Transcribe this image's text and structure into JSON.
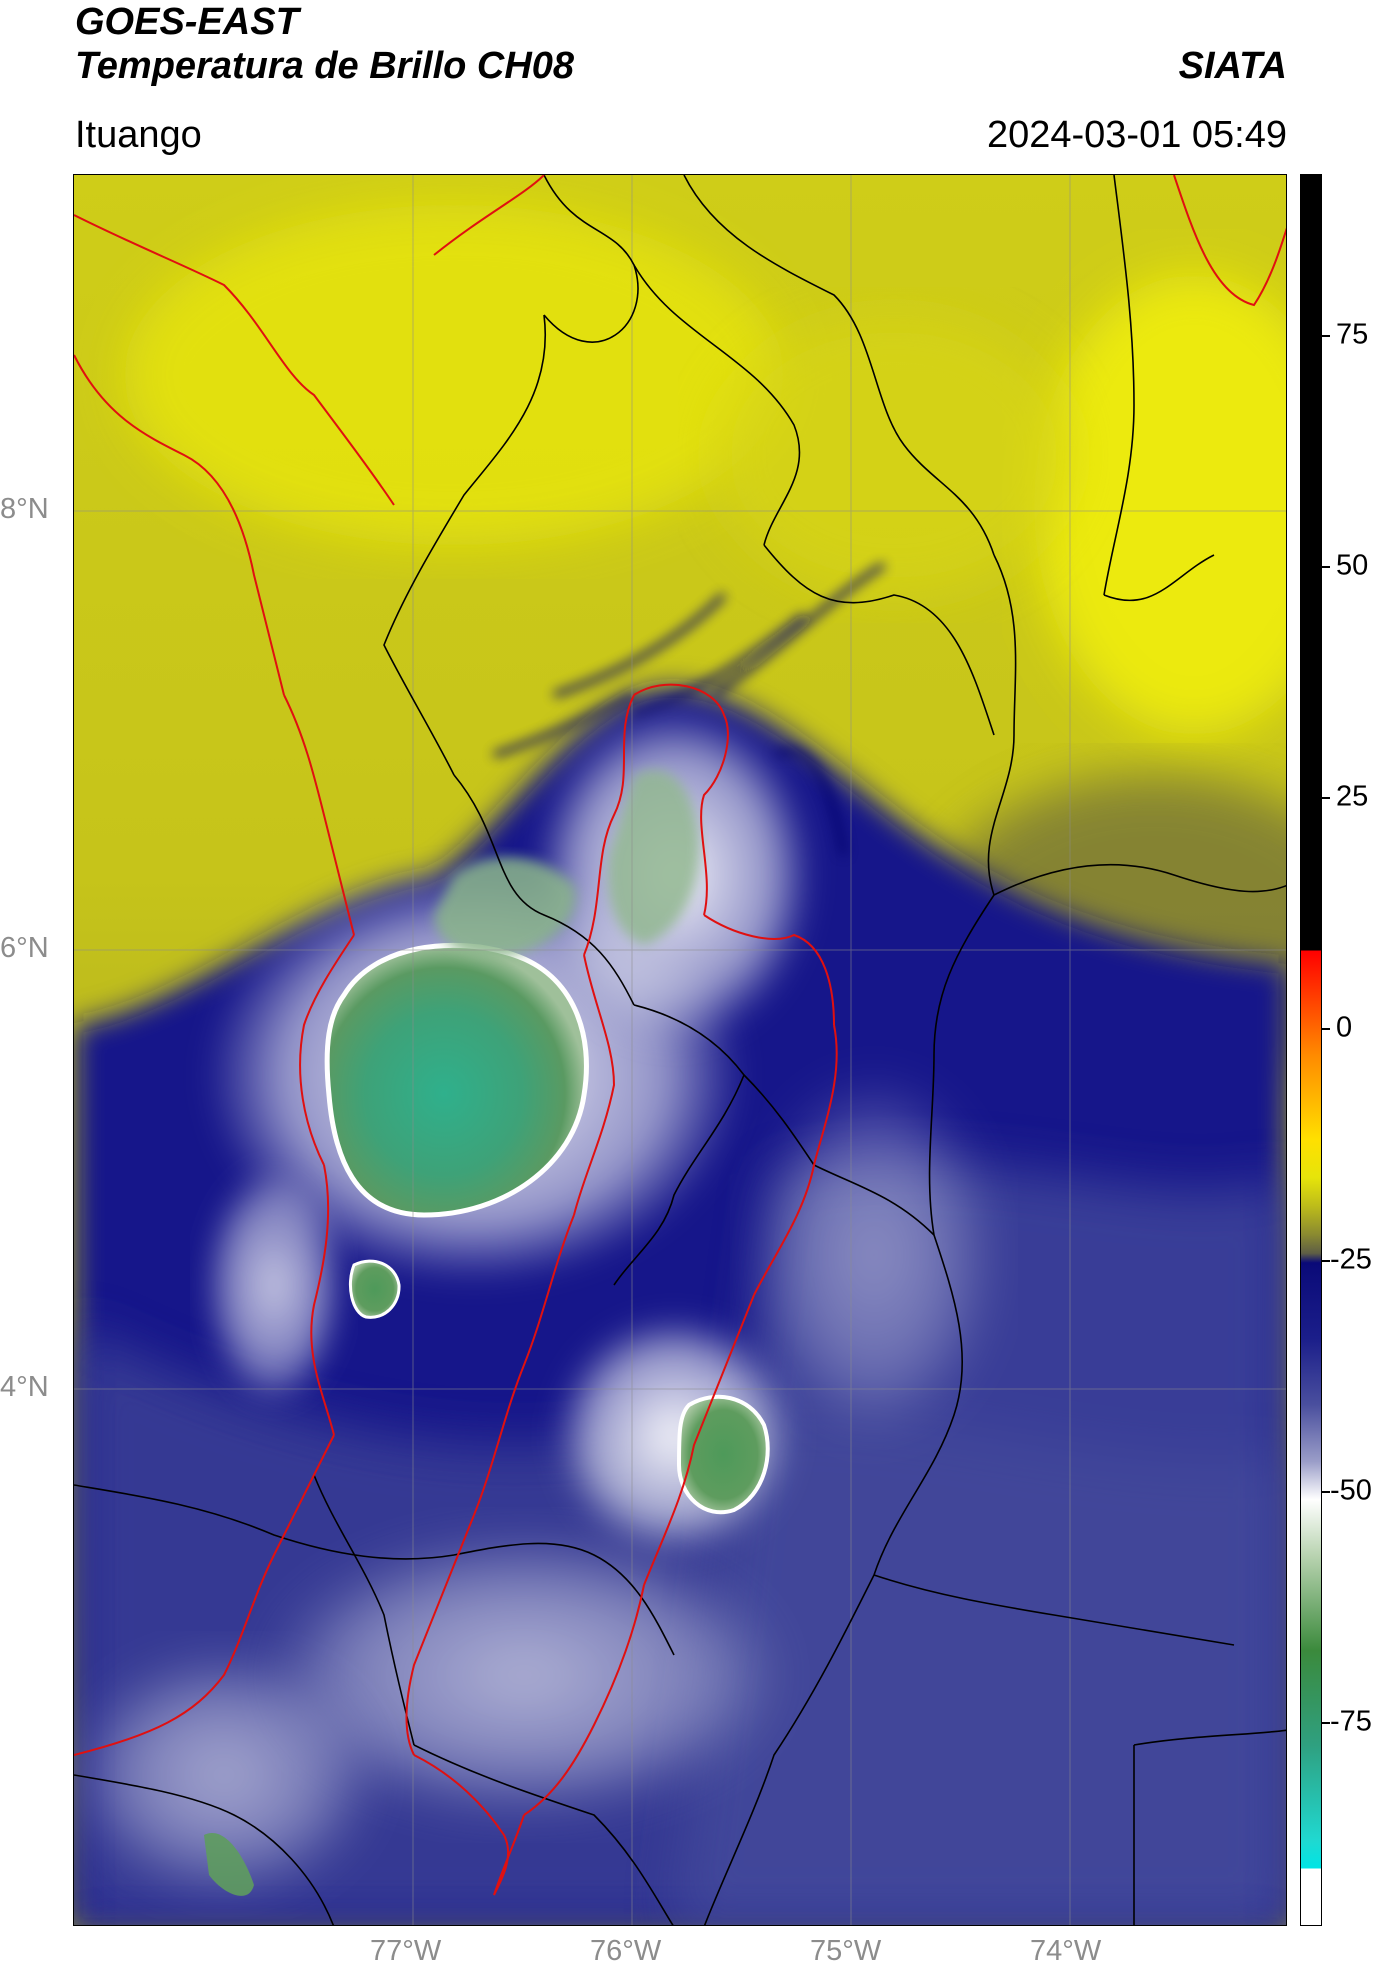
{
  "header": {
    "title_line1": "GOES-EAST",
    "title_line2": "Temperatura de Brillo CH08",
    "brand": "SIATA",
    "location": "Ituango",
    "datetime": "2024-03-01 05:49"
  },
  "map": {
    "lat_labels": [
      "8°N",
      "6°N",
      "4°N"
    ],
    "lon_labels": [
      "77°W",
      "76°W",
      "75°W",
      "74°W"
    ],
    "colors": {
      "background_warm": "#b9b81c",
      "yellow": "#e5e30f",
      "cold_blue": "#13137f",
      "mid_blue": "#4a4f9e",
      "white": "#f0f0f5",
      "green": "#4e9a5a",
      "teal": "#2fb08c",
      "boundary_country": "#e01010",
      "boundary_admin": "#000000",
      "gridline": "#8c8c8c"
    }
  },
  "colorbar": {
    "labels": [
      "75",
      "50",
      "25",
      "0",
      "-25",
      "-50",
      "-75"
    ],
    "range": [
      -95,
      90
    ],
    "units_note": ""
  }
}
